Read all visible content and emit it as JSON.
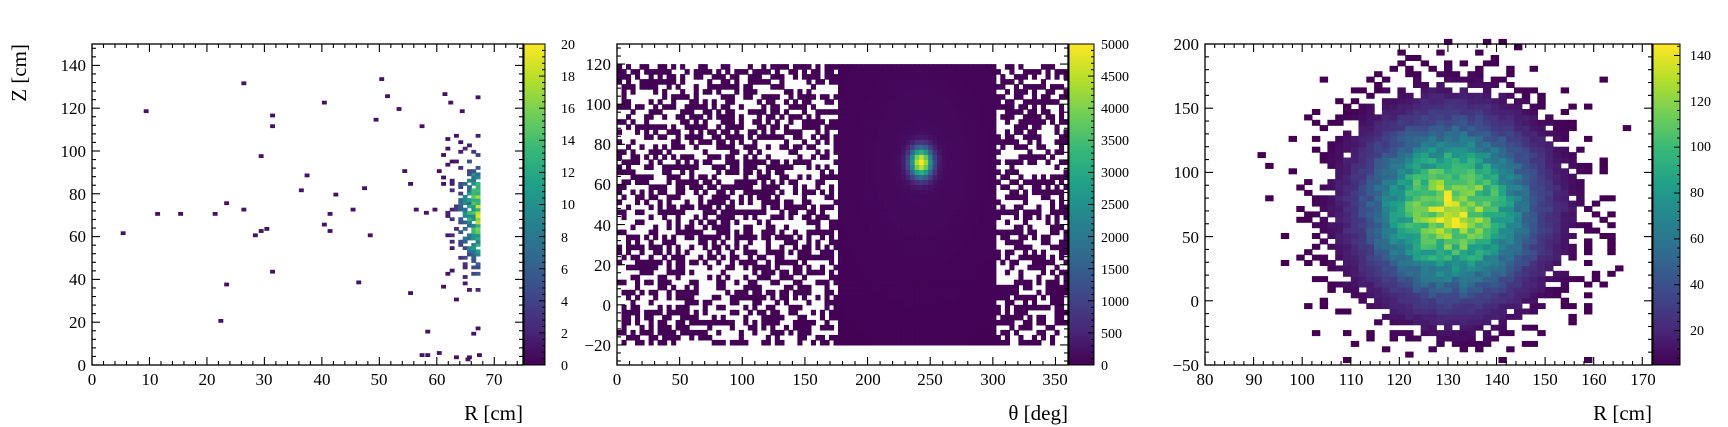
{
  "colormap": [
    "#440154",
    "#482878",
    "#3e4989",
    "#31688e",
    "#26828e",
    "#1f9e89",
    "#35b779",
    "#6ece58",
    "#b5de2b",
    "#fde725"
  ],
  "chart_data": [
    {
      "type": "heatmap",
      "xlabel": "R [cm]",
      "ylabel": "Z [cm]",
      "xlim": [
        0,
        75
      ],
      "ylim": [
        0,
        150
      ],
      "xticks": [
        "0",
        "10",
        "20",
        "30",
        "40",
        "50",
        "60",
        "70"
      ],
      "yticks": [
        "0",
        "20",
        "40",
        "60",
        "80",
        "100",
        "120",
        "140"
      ],
      "colorbar": {
        "range": [
          0,
          20
        ],
        "ticks": [
          "0",
          "2",
          "4",
          "6",
          "8",
          "10",
          "12",
          "14",
          "16",
          "18",
          "20"
        ]
      },
      "distribution": {
        "center": [
          68,
          70
        ],
        "sigma": [
          3,
          18
        ],
        "peak": 20,
        "x_max": 67.5
      },
      "scattered_points": [
        [
          5,
          61
        ],
        [
          9,
          118
        ],
        [
          11,
          70
        ],
        [
          15,
          70
        ],
        [
          21,
          70
        ],
        [
          22,
          20
        ],
        [
          23,
          37
        ],
        [
          23,
          75
        ],
        [
          26,
          131
        ],
        [
          26,
          72
        ],
        [
          28,
          60
        ],
        [
          29,
          97
        ],
        [
          29,
          62
        ],
        [
          30,
          63
        ],
        [
          31,
          116
        ],
        [
          31,
          111
        ],
        [
          31,
          43
        ],
        [
          36,
          81
        ],
        [
          37,
          88
        ],
        [
          40,
          122
        ],
        [
          40,
          65
        ],
        [
          41,
          70
        ],
        [
          41,
          62
        ],
        [
          42,
          79
        ],
        [
          45,
          72
        ],
        [
          46,
          38
        ],
        [
          47,
          82
        ],
        [
          48,
          60
        ],
        [
          49,
          114
        ],
        [
          50,
          133
        ],
        [
          51,
          125
        ],
        [
          53,
          119
        ],
        [
          54,
          90
        ],
        [
          55,
          84
        ],
        [
          55,
          33
        ],
        [
          56,
          72
        ],
        [
          57,
          111
        ],
        [
          57,
          4
        ],
        [
          58,
          4
        ],
        [
          58,
          15
        ],
        [
          60,
          5
        ],
        [
          61,
          126
        ],
        [
          62,
          122
        ],
        [
          63,
          3
        ],
        [
          64,
          118
        ],
        [
          65,
          2
        ],
        [
          66,
          14
        ],
        [
          67,
          4
        ]
      ]
    },
    {
      "type": "heatmap",
      "xlabel": "θ [deg]",
      "ylabel": "",
      "xlim": [
        0,
        360
      ],
      "ylim": [
        -30,
        130
      ],
      "xticks": [
        "0",
        "50",
        "100",
        "150",
        "200",
        "250",
        "300",
        "350"
      ],
      "yticks": [
        "−20",
        "0",
        "20",
        "40",
        "60",
        "80",
        "100",
        "120"
      ],
      "colorbar": {
        "range": [
          0,
          5000
        ],
        "ticks": [
          "0",
          "500",
          "1000",
          "1500",
          "2000",
          "2500",
          "3000",
          "3500",
          "4000",
          "4500",
          "5000"
        ]
      },
      "distribution": {
        "center": [
          241,
          70
        ],
        "sigma": [
          6,
          5
        ],
        "peak": 5000,
        "band": [
          175,
          300
        ]
      },
      "y_support": [
        -20,
        120
      ]
    },
    {
      "type": "heatmap",
      "xlabel": "R [cm]",
      "ylabel": "",
      "xlim": [
        80,
        172
      ],
      "ylim": [
        -50,
        200
      ],
      "xticks": [
        "80",
        "90",
        "100",
        "110",
        "120",
        "130",
        "140",
        "150",
        "160",
        "170"
      ],
      "yticks": [
        "−50",
        "0",
        "50",
        "100",
        "150",
        "200"
      ],
      "colorbar": {
        "range": [
          5,
          145
        ],
        "ticks": [
          "20",
          "40",
          "60",
          "80",
          "100",
          "120",
          "140"
        ]
      },
      "distribution": {
        "center": [
          130,
          70
        ],
        "sigma": [
          11.5,
          44
        ],
        "peak": 140
      }
    }
  ]
}
